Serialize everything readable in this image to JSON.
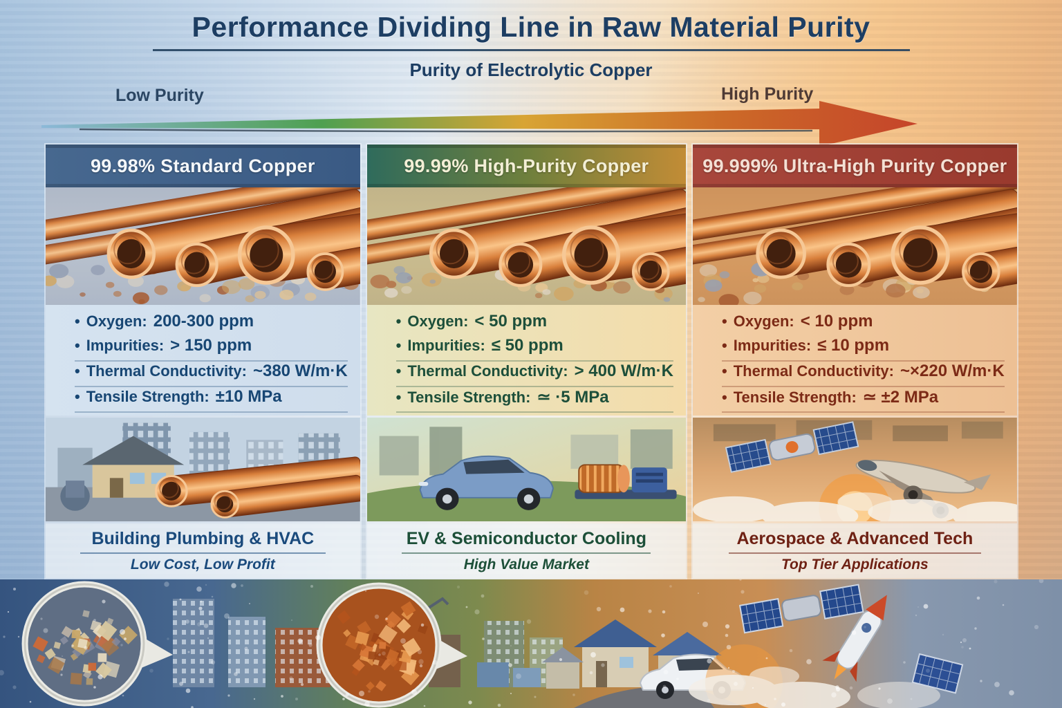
{
  "header": {
    "title": "Performance Dividing Line in Raw Material Purity",
    "subtitle": "Purity of Electrolytic Copper",
    "axis": {
      "left_label": "Low Purity",
      "right_label": "High Purity",
      "gradient": [
        "#8cb8d8",
        "#4fa050",
        "#d8a434",
        "#c5442a"
      ]
    }
  },
  "columns": [
    {
      "id": "standard-copper",
      "title": "99.98% Standard Copper",
      "specs": [
        {
          "label": "Oxygen:",
          "value": "200-300 ppm"
        },
        {
          "label": "Impurities:",
          "value": "> 150 ppm"
        },
        {
          "label": "Thermal Conductivity:",
          "value": "~380 W/m·K"
        },
        {
          "label": "Tensile Strength:",
          "value": "±10 MPa"
        }
      ],
      "application": "Building Plumbing & HVAC",
      "market": "Low Cost, Low Profit",
      "scene": "plumbing",
      "colors": {
        "header_stops": [
          "#47688f",
          "#3a5a84"
        ],
        "header_text": "#f4f7fa",
        "text": "#174673",
        "banner_text": "#1a4a7c",
        "specs_stops": [
          "#d5e3f0",
          "#cfddec"
        ],
        "photo_bg": "#b2c2d5"
      }
    },
    {
      "id": "high-purity-copper",
      "title": "99.99% High-Purity Copper",
      "specs": [
        {
          "label": "Oxygen:",
          "value": "< 50 ppm"
        },
        {
          "label": "Impurities:",
          "value": "≤ 50 ppm"
        },
        {
          "label": "Thermal Conductivity:",
          "value": "> 400 W/m·K"
        },
        {
          "label": "Tensile Strength:",
          "value": "≃ ·5 MPa"
        }
      ],
      "application": "EV & Semiconductor Cooling",
      "market": "High Value Market",
      "scene": "ev",
      "colors": {
        "header_stops": [
          "#2f6b5c",
          "#6e7f3c",
          "#c28c36"
        ],
        "header_text": "#f3efd6",
        "text": "#1d4f3a",
        "banner_text": "#1c4f38",
        "specs_stops": [
          "#e7e6c2",
          "#f4dcaa"
        ],
        "photo_bg": "#c6bd92"
      }
    },
    {
      "id": "ultra-high-purity-copper",
      "title": "99.999% Ultra-High Purity Copper",
      "specs": [
        {
          "label": "Oxygen:",
          "value": "< 10 ppm"
        },
        {
          "label": "Impurities:",
          "value": "≤ 10 ppm"
        },
        {
          "label": "Thermal Conductivity:",
          "value": "~×220 W/m·K"
        },
        {
          "label": "Tensile Strength:",
          "value": "≃ ±2 MPa"
        }
      ],
      "application": "Aerospace & Advanced Tech",
      "market": "Top Tier Applications",
      "scene": "aerospace",
      "colors": {
        "header_stops": [
          "#a8473c",
          "#993a2e"
        ],
        "header_text": "#f4e0d4",
        "text": "#7c2a16",
        "banner_text": "#6e2114",
        "specs_stops": [
          "#f3cfa6",
          "#edc094"
        ],
        "photo_bg": "#d39a62"
      }
    }
  ],
  "bottom_strip": {
    "icons": [
      "impure-grain-magnifier",
      "industrial-city",
      "copper-grain-magnifier",
      "factory-district",
      "suburban-houses",
      "white-car",
      "satellite",
      "rocket"
    ]
  }
}
